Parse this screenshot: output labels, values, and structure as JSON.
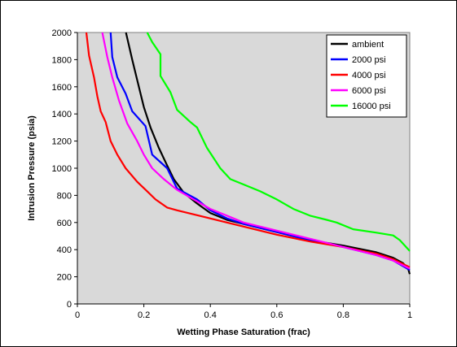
{
  "chart_data": {
    "type": "line",
    "title": "",
    "xlabel": "Wetting Phase Saturation (frac)",
    "ylabel": "Intrusion Pressure (psia)",
    "xlim": [
      0,
      1
    ],
    "ylim": [
      0,
      2000
    ],
    "xticks": [
      0,
      0.2,
      0.4,
      0.6,
      0.8,
      1
    ],
    "xtick_labels": [
      "0",
      "0.2",
      "0.4",
      "0.6",
      "0.8",
      "1"
    ],
    "yticks": [
      0,
      200,
      400,
      600,
      800,
      1000,
      1200,
      1400,
      1600,
      1800,
      2000
    ],
    "ytick_labels": [
      "0",
      "200",
      "400",
      "600",
      "800",
      "1000",
      "1200",
      "1400",
      "1600",
      "1800",
      "2000"
    ],
    "plot_background": "#d9d9d9",
    "grid": false,
    "legend_position": "top-right",
    "series": [
      {
        "name": "ambient",
        "color": "#000000",
        "points": [
          [
            0.146,
            2000
          ],
          [
            0.165,
            1800
          ],
          [
            0.18,
            1650
          ],
          [
            0.2,
            1450
          ],
          [
            0.22,
            1300
          ],
          [
            0.245,
            1150
          ],
          [
            0.27,
            1020
          ],
          [
            0.29,
            920
          ],
          [
            0.32,
            820
          ],
          [
            0.36,
            740
          ],
          [
            0.4,
            670
          ],
          [
            0.45,
            620
          ],
          [
            0.5,
            590
          ],
          [
            0.6,
            530
          ],
          [
            0.7,
            470
          ],
          [
            0.8,
            430
          ],
          [
            0.9,
            380
          ],
          [
            0.95,
            340
          ],
          [
            0.98,
            300
          ],
          [
            0.995,
            260
          ],
          [
            1.0,
            220
          ]
        ]
      },
      {
        "name": "2000 psi",
        "color": "#0000ff",
        "points": [
          [
            0.1,
            2000
          ],
          [
            0.105,
            1820
          ],
          [
            0.12,
            1670
          ],
          [
            0.145,
            1550
          ],
          [
            0.165,
            1420
          ],
          [
            0.205,
            1310
          ],
          [
            0.225,
            1100
          ],
          [
            0.27,
            1000
          ],
          [
            0.3,
            850
          ],
          [
            0.36,
            770
          ],
          [
            0.4,
            690
          ],
          [
            0.45,
            630
          ],
          [
            0.5,
            590
          ],
          [
            0.6,
            530
          ],
          [
            0.7,
            470
          ],
          [
            0.8,
            420
          ],
          [
            0.9,
            360
          ],
          [
            0.95,
            320
          ],
          [
            1.0,
            250
          ]
        ]
      },
      {
        "name": "4000 psi",
        "color": "#ff0000",
        "points": [
          [
            0.027,
            2000
          ],
          [
            0.035,
            1830
          ],
          [
            0.05,
            1670
          ],
          [
            0.06,
            1530
          ],
          [
            0.07,
            1420
          ],
          [
            0.085,
            1340
          ],
          [
            0.1,
            1200
          ],
          [
            0.12,
            1100
          ],
          [
            0.145,
            1000
          ],
          [
            0.18,
            900
          ],
          [
            0.21,
            830
          ],
          [
            0.235,
            770
          ],
          [
            0.27,
            710
          ],
          [
            0.3,
            690
          ],
          [
            0.35,
            660
          ],
          [
            0.4,
            630
          ],
          [
            0.45,
            600
          ],
          [
            0.5,
            570
          ],
          [
            0.6,
            510
          ],
          [
            0.7,
            460
          ],
          [
            0.8,
            420
          ],
          [
            0.9,
            370
          ],
          [
            0.95,
            330
          ],
          [
            1.0,
            270
          ]
        ]
      },
      {
        "name": "6000 psi",
        "color": "#ff00ff",
        "points": [
          [
            0.075,
            2000
          ],
          [
            0.09,
            1820
          ],
          [
            0.105,
            1670
          ],
          [
            0.125,
            1500
          ],
          [
            0.15,
            1330
          ],
          [
            0.18,
            1200
          ],
          [
            0.2,
            1100
          ],
          [
            0.225,
            1000
          ],
          [
            0.26,
            920
          ],
          [
            0.3,
            840
          ],
          [
            0.35,
            770
          ],
          [
            0.4,
            700
          ],
          [
            0.45,
            650
          ],
          [
            0.5,
            600
          ],
          [
            0.6,
            540
          ],
          [
            0.7,
            480
          ],
          [
            0.8,
            420
          ],
          [
            0.9,
            360
          ],
          [
            0.95,
            320
          ],
          [
            1.0,
            260
          ]
        ]
      },
      {
        "name": "16000 psi",
        "color": "#00ff00",
        "points": [
          [
            0.21,
            2000
          ],
          [
            0.225,
            1930
          ],
          [
            0.25,
            1840
          ],
          [
            0.25,
            1680
          ],
          [
            0.28,
            1560
          ],
          [
            0.3,
            1430
          ],
          [
            0.34,
            1340
          ],
          [
            0.36,
            1300
          ],
          [
            0.39,
            1150
          ],
          [
            0.43,
            1000
          ],
          [
            0.46,
            920
          ],
          [
            0.5,
            880
          ],
          [
            0.55,
            830
          ],
          [
            0.6,
            770
          ],
          [
            0.65,
            700
          ],
          [
            0.7,
            650
          ],
          [
            0.75,
            620
          ],
          [
            0.78,
            600
          ],
          [
            0.83,
            550
          ],
          [
            0.9,
            525
          ],
          [
            0.95,
            505
          ],
          [
            0.97,
            470
          ],
          [
            1.0,
            390
          ]
        ]
      }
    ]
  }
}
